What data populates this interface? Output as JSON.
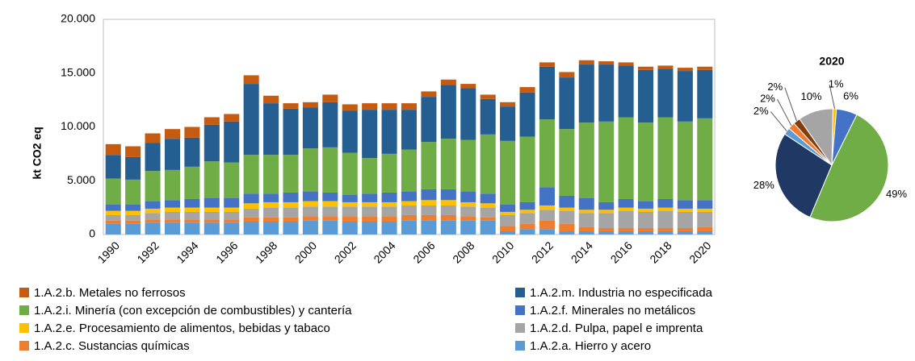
{
  "chart_data": [
    {
      "type": "bar",
      "stacked": true,
      "y_label": "kt CO2 eq",
      "categories": [
        "1990",
        null,
        "1992",
        null,
        "1994",
        null,
        "1996",
        null,
        "1998",
        null,
        "2000",
        null,
        "2002",
        null,
        "2004",
        null,
        "2006",
        null,
        "2008",
        null,
        "2010",
        null,
        "2012",
        null,
        "2014",
        null,
        "2016",
        null,
        "2018",
        null,
        "2020"
      ],
      "ylim": [
        0,
        20000
      ],
      "yticks": [
        0,
        {
          "value": 5000,
          "label": "5.000"
        },
        {
          "value": 10000,
          "label": "10.000"
        },
        {
          "value": 15000,
          "label": "15.000"
        },
        {
          "value": 20000,
          "label": "20.000"
        }
      ],
      "grid": false,
      "series": [
        {
          "name": "1.A.2.a. Hierro y acero",
          "color": "#5b9bd5",
          "values": [
            1000,
            1000,
            1100,
            1100,
            1100,
            1100,
            1100,
            1200,
            1200,
            1200,
            1300,
            1300,
            1200,
            1200,
            1200,
            1300,
            1300,
            1300,
            1300,
            1300,
            300,
            500,
            500,
            300,
            300,
            300,
            300,
            300,
            300,
            300,
            300
          ]
        },
        {
          "name": "1.A.2.c. Sustancias químicas",
          "color": "#ed7d31",
          "values": [
            300,
            300,
            300,
            300,
            300,
            300,
            300,
            400,
            400,
            400,
            400,
            400,
            500,
            500,
            500,
            500,
            500,
            500,
            400,
            300,
            500,
            500,
            800,
            700,
            400,
            300,
            300,
            300,
            300,
            300,
            400
          ]
        },
        {
          "name": "1.A.2.d. Pulpa, papel e imprenta",
          "color": "#a5a5a5",
          "values": [
            500,
            500,
            600,
            700,
            700,
            700,
            700,
            800,
            900,
            900,
            900,
            900,
            900,
            900,
            900,
            900,
            900,
            900,
            900,
            900,
            1000,
            1000,
            1000,
            1200,
            1300,
            1400,
            1600,
            1500,
            1600,
            1500,
            1400
          ]
        },
        {
          "name": "1.A.2.e. Procesamiento de alimentos, bebidas y tabaco",
          "color": "#ffc000",
          "values": [
            400,
            400,
            400,
            400,
            400,
            400,
            400,
            500,
            500,
            500,
            500,
            500,
            400,
            400,
            400,
            400,
            500,
            500,
            400,
            400,
            300,
            300,
            400,
            300,
            300,
            300,
            300,
            300,
            300,
            300,
            300
          ]
        },
        {
          "name": "1.A.2.f. Minerales no metálicos",
          "color": "#4472c4",
          "values": [
            600,
            600,
            700,
            700,
            800,
            900,
            900,
            900,
            800,
            900,
            900,
            800,
            700,
            800,
            900,
            900,
            1000,
            1000,
            1000,
            900,
            700,
            700,
            1700,
            1100,
            1100,
            700,
            800,
            700,
            800,
            800,
            800
          ]
        },
        {
          "name": "1.A.2.i. Minería (con excepción de combustibles) y cantería",
          "color": "#70ad47",
          "values": [
            2400,
            2300,
            2800,
            2800,
            3000,
            3400,
            3300,
            3600,
            3600,
            3500,
            4000,
            4200,
            3900,
            3300,
            3600,
            3900,
            4400,
            4700,
            4800,
            5500,
            5900,
            6100,
            6300,
            6200,
            7000,
            7500,
            7600,
            7300,
            7600,
            7300,
            7600
          ]
        },
        {
          "name": "1.A.2.m. Industria no especificada",
          "color": "#255e91",
          "values": [
            2200,
            2100,
            2600,
            2900,
            2700,
            3400,
            3800,
            6600,
            4800,
            4300,
            3800,
            4200,
            3900,
            4500,
            4100,
            3700,
            4200,
            5000,
            4800,
            3300,
            3200,
            4100,
            4900,
            4800,
            5400,
            5300,
            4800,
            4900,
            4500,
            4700,
            4500
          ]
        },
        {
          "name": "1.A.2.b. Metales no ferrosos",
          "color": "#c55a11",
          "values": [
            1000,
            1000,
            900,
            900,
            1000,
            700,
            700,
            800,
            700,
            500,
            500,
            700,
            600,
            600,
            600,
            600,
            500,
            500,
            400,
            400,
            400,
            500,
            400,
            500,
            400,
            300,
            300,
            300,
            300,
            300,
            300
          ]
        }
      ]
    },
    {
      "type": "pie",
      "title": "2020",
      "categories": [
        "1.A.2.e. Procesamiento de alimentos, bebidas y tabaco",
        "1.A.2.f. Minerales no metálicos",
        "1.A.2.i. Minería (con excepción de combustibles) y cantería",
        "1.A.2.m. Industria no especificada",
        "1.A.2.a. Hierro y acero",
        "1.A.2.c. Sustancias químicas",
        "1.A.2.b. Metales no ferrosos",
        "1.A.2.d. Pulpa, papel e imprenta"
      ],
      "values": [
        1,
        6,
        49,
        28,
        2,
        2,
        2,
        10
      ],
      "value_labels": [
        "1%",
        "6%",
        "49%",
        "28%",
        "2%",
        "2%",
        "2%",
        "10%"
      ],
      "colors": [
        "#ffc000",
        "#4472c4",
        "#70ad47",
        "#1f3864",
        "#5b9bd5",
        "#ed7d31",
        "#843c0c",
        "#a5a5a5"
      ]
    }
  ]
}
